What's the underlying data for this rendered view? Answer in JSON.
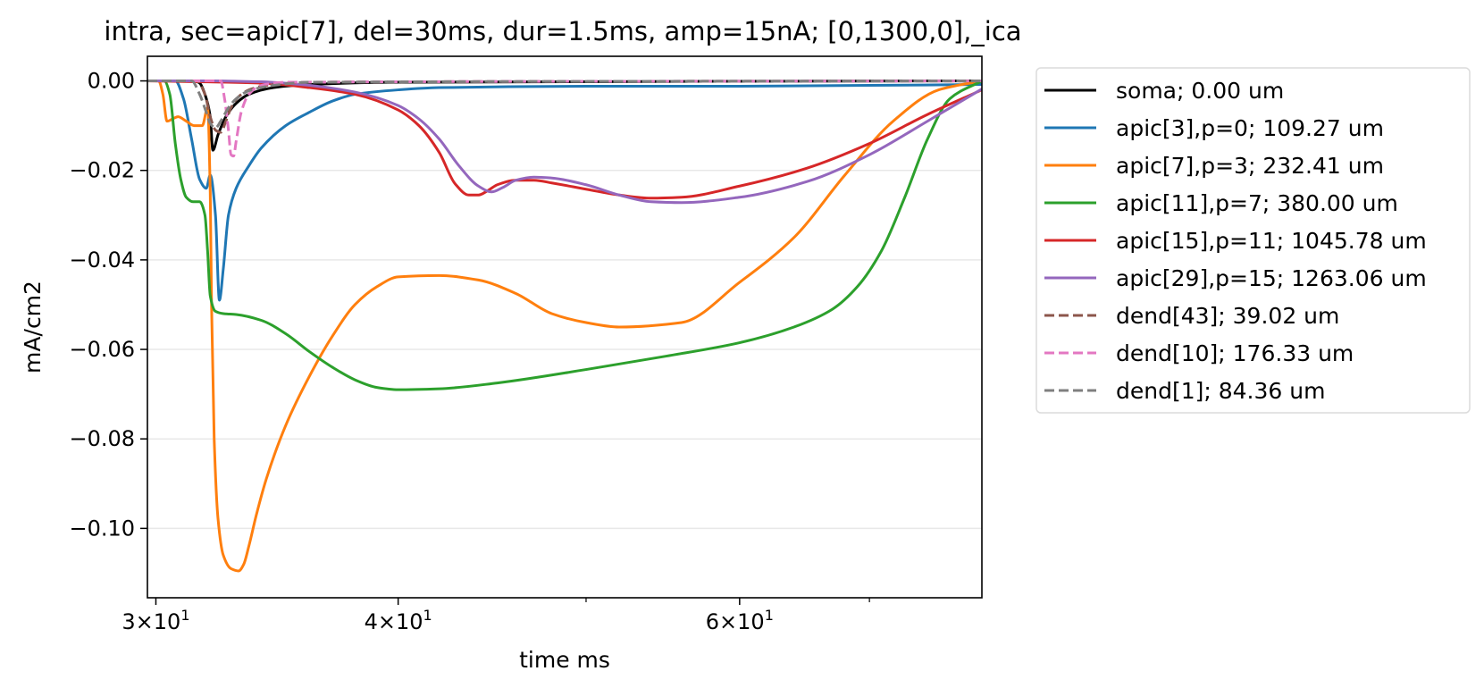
{
  "chart_data": {
    "type": "line",
    "title": "intra, sec=apic[7], del=30ms, dur=1.5ms, amp=15nA; [0,1300,0],_ica",
    "xlabel": "time ms",
    "ylabel": "mA/cm2",
    "xscale": "log",
    "xlim": [
      29.7,
      80
    ],
    "ylim": [
      -0.1155,
      0.0055
    ],
    "x_ticks": [
      {
        "value": 30,
        "base": "3×10",
        "exp": "1"
      },
      {
        "value": 40,
        "base": "4×10",
        "exp": "1"
      },
      {
        "value": 60,
        "base": "6×10",
        "exp": "1"
      }
    ],
    "x_minor_ticks": [
      50,
      70
    ],
    "y_ticks": [
      {
        "value": 0.0,
        "label": "0.00"
      },
      {
        "value": -0.02,
        "label": "−0.02"
      },
      {
        "value": -0.04,
        "label": "−0.04"
      },
      {
        "value": -0.06,
        "label": "−0.06"
      },
      {
        "value": -0.08,
        "label": "−0.08"
      },
      {
        "value": -0.1,
        "label": "−0.10"
      }
    ],
    "grid": "horizontal",
    "legend_position": "outside-right",
    "series": [
      {
        "name": "soma; 0.00 um",
        "color": "#000000",
        "dash": false,
        "x": [
          29.7,
          31.4,
          31.6,
          31.8,
          32.0,
          32.1,
          32.3,
          32.6,
          33.0,
          33.5,
          34.5,
          36,
          40,
          80
        ],
        "y": [
          0,
          0,
          -0.0005,
          -0.003,
          -0.008,
          -0.0155,
          -0.012,
          -0.008,
          -0.005,
          -0.003,
          -0.0015,
          -0.0008,
          -0.0003,
          0
        ]
      },
      {
        "name": "apic[3],p=0; 109.27 um",
        "color": "#1f77b4",
        "dash": false,
        "x": [
          29.7,
          30.7,
          31.0,
          31.3,
          31.6,
          31.85,
          32.0,
          32.2,
          32.35,
          32.5,
          32.7,
          33,
          33.5,
          34,
          35,
          36,
          37,
          38,
          40,
          42,
          50,
          60,
          70,
          80
        ],
        "y": [
          0,
          0,
          -0.004,
          -0.013,
          -0.022,
          -0.024,
          -0.021,
          -0.03,
          -0.049,
          -0.042,
          -0.03,
          -0.024,
          -0.019,
          -0.015,
          -0.01,
          -0.007,
          -0.0045,
          -0.003,
          -0.002,
          -0.0015,
          -0.0012,
          -0.0012,
          -0.001,
          -0.0008
        ]
      },
      {
        "name": "apic[7],p=3; 232.41 um",
        "color": "#ff7f0e",
        "dash": false,
        "x": [
          29.7,
          30.1,
          30.25,
          30.4,
          30.6,
          30.8,
          31.1,
          31.4,
          31.7,
          31.9,
          32.0,
          32.05,
          32.15,
          32.3,
          32.5,
          32.8,
          33.1,
          33.3,
          33.5,
          33.8,
          34.2,
          35,
          36,
          37,
          38,
          39,
          40,
          42,
          44,
          46,
          48,
          50,
          52,
          56,
          60,
          64,
          68,
          72,
          76,
          80
        ],
        "y": [
          0,
          0,
          -0.003,
          -0.009,
          -0.0085,
          -0.008,
          -0.009,
          -0.01,
          -0.01,
          -0.006,
          -0.025,
          -0.05,
          -0.08,
          -0.098,
          -0.106,
          -0.109,
          -0.1095,
          -0.108,
          -0.104,
          -0.097,
          -0.089,
          -0.077,
          -0.066,
          -0.057,
          -0.05,
          -0.046,
          -0.0438,
          -0.0435,
          -0.0445,
          -0.0475,
          -0.052,
          -0.054,
          -0.055,
          -0.054,
          -0.045,
          -0.035,
          -0.021,
          -0.009,
          -0.002,
          0
        ]
      },
      {
        "name": "apic[11],p=7; 380.00 um",
        "color": "#2ca02c",
        "dash": false,
        "x": [
          29.7,
          30.3,
          30.5,
          30.7,
          30.9,
          31.1,
          31.35,
          31.6,
          31.8,
          31.9,
          32.0,
          32.2,
          32.5,
          33,
          34,
          35,
          36,
          37,
          38,
          39,
          40,
          42,
          45,
          50,
          55,
          60,
          64,
          67,
          69,
          71,
          73,
          75,
          77,
          80
        ],
        "y": [
          0,
          0,
          -0.003,
          -0.014,
          -0.022,
          -0.026,
          -0.027,
          -0.027,
          -0.03,
          -0.038,
          -0.048,
          -0.0515,
          -0.052,
          -0.0522,
          -0.0535,
          -0.0565,
          -0.0605,
          -0.064,
          -0.0668,
          -0.0685,
          -0.069,
          -0.0688,
          -0.0675,
          -0.0645,
          -0.0615,
          -0.0585,
          -0.055,
          -0.051,
          -0.046,
          -0.038,
          -0.026,
          -0.013,
          -0.004,
          0
        ]
      },
      {
        "name": "apic[15],p=11; 1045.78 um",
        "color": "#d62728",
        "dash": false,
        "x": [
          29.7,
          34,
          36,
          38,
          40,
          41,
          42,
          42.8,
          43.5,
          44,
          44.5,
          45,
          46,
          47,
          48,
          50,
          52,
          54,
          56,
          60,
          65,
          70,
          75,
          80
        ],
        "y": [
          0,
          -0.0005,
          -0.0015,
          -0.003,
          -0.0065,
          -0.01,
          -0.016,
          -0.023,
          -0.0255,
          -0.0255,
          -0.0245,
          -0.0232,
          -0.0222,
          -0.0222,
          -0.0228,
          -0.0242,
          -0.0255,
          -0.0262,
          -0.026,
          -0.0235,
          -0.0195,
          -0.014,
          -0.0075,
          -0.002
        ]
      },
      {
        "name": "apic[29],p=15; 1263.06 um",
        "color": "#9467bd",
        "dash": false,
        "x": [
          29.7,
          32,
          34,
          36,
          38,
          40,
          41,
          42,
          43,
          44,
          44.7,
          45.3,
          46,
          47,
          48,
          50,
          52,
          54,
          56,
          60,
          65,
          70,
          75,
          80
        ],
        "y": [
          0,
          0,
          -0.0002,
          -0.001,
          -0.0025,
          -0.0055,
          -0.0085,
          -0.013,
          -0.019,
          -0.0235,
          -0.0248,
          -0.0238,
          -0.0222,
          -0.0215,
          -0.0217,
          -0.0232,
          -0.0255,
          -0.027,
          -0.0272,
          -0.026,
          -0.0225,
          -0.0165,
          -0.009,
          -0.0018
        ]
      },
      {
        "name": "dend[43]; 39.02 um",
        "color": "#8c564b",
        "dash": true,
        "x": [
          29.7,
          31.5,
          31.8,
          32.0,
          32.2,
          32.4,
          32.6,
          32.8,
          33.1,
          33.6,
          34.5,
          36,
          80
        ],
        "y": [
          0,
          0,
          -0.003,
          -0.008,
          -0.011,
          -0.0115,
          -0.009,
          -0.006,
          -0.0035,
          -0.0018,
          -0.0008,
          -0.0003,
          0
        ]
      },
      {
        "name": "dend[10]; 176.33 um",
        "color": "#e377c2",
        "dash": true,
        "x": [
          29.7,
          32.4,
          32.55,
          32.7,
          32.8,
          32.9,
          33.0,
          33.2,
          33.5,
          34,
          35,
          80
        ],
        "y": [
          0,
          0,
          -0.004,
          -0.011,
          -0.0165,
          -0.0168,
          -0.0135,
          -0.007,
          -0.003,
          -0.001,
          -0.0003,
          0
        ]
      },
      {
        "name": "dend[1]; 84.36 um",
        "color": "#7f7f7f",
        "dash": true,
        "x": [
          29.7,
          31.3,
          31.6,
          31.85,
          32.0,
          32.2,
          32.4,
          32.7,
          33.0,
          33.5,
          34.5,
          36,
          80
        ],
        "y": [
          0,
          0,
          -0.003,
          -0.007,
          -0.0095,
          -0.0105,
          -0.009,
          -0.006,
          -0.004,
          -0.0022,
          -0.001,
          -0.0003,
          0
        ]
      }
    ]
  }
}
